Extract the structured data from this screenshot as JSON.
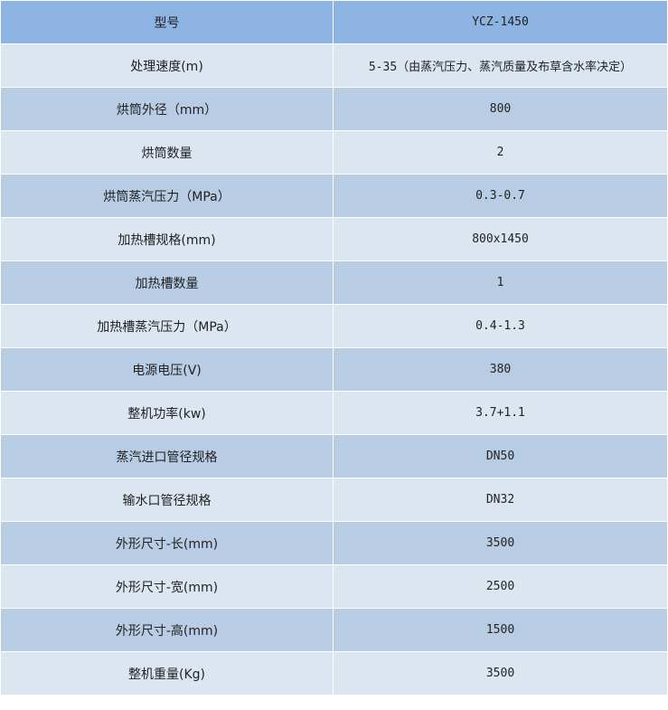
{
  "header": {
    "label": "型号",
    "value": "YCZ-1450"
  },
  "colors": {
    "header": "#8eb4e3",
    "row_light": "#dce6f1",
    "row_dark": "#b8cce4"
  },
  "rows": [
    {
      "label": "处理速度(m)",
      "value": "5-35（由蒸汽压力、蒸汽质量及布草含水率决定）"
    },
    {
      "label": "烘筒外径（mm）",
      "value": "800"
    },
    {
      "label": "烘筒数量",
      "value": "2"
    },
    {
      "label": "烘筒蒸汽压力（MPa）",
      "value": "0.3-0.7"
    },
    {
      "label": "加热槽规格(mm)",
      "value": "800x1450"
    },
    {
      "label": "加热槽数量",
      "value": "1"
    },
    {
      "label": "加热槽蒸汽压力（MPa）",
      "value": "0.4-1.3"
    },
    {
      "label": "电源电压(V)",
      "value": "380"
    },
    {
      "label": "整机功率(kw)",
      "value": "3.7+1.1"
    },
    {
      "label": "蒸汽进口管径规格",
      "value": "DN50"
    },
    {
      "label": "输水口管径规格",
      "value": "DN32"
    },
    {
      "label": "外形尺寸-长(mm)",
      "value": "3500"
    },
    {
      "label": "外形尺寸-宽(mm)",
      "value": "2500"
    },
    {
      "label": "外形尺寸-高(mm)",
      "value": "1500"
    },
    {
      "label": "整机重量(Kg)",
      "value": "3500"
    }
  ]
}
